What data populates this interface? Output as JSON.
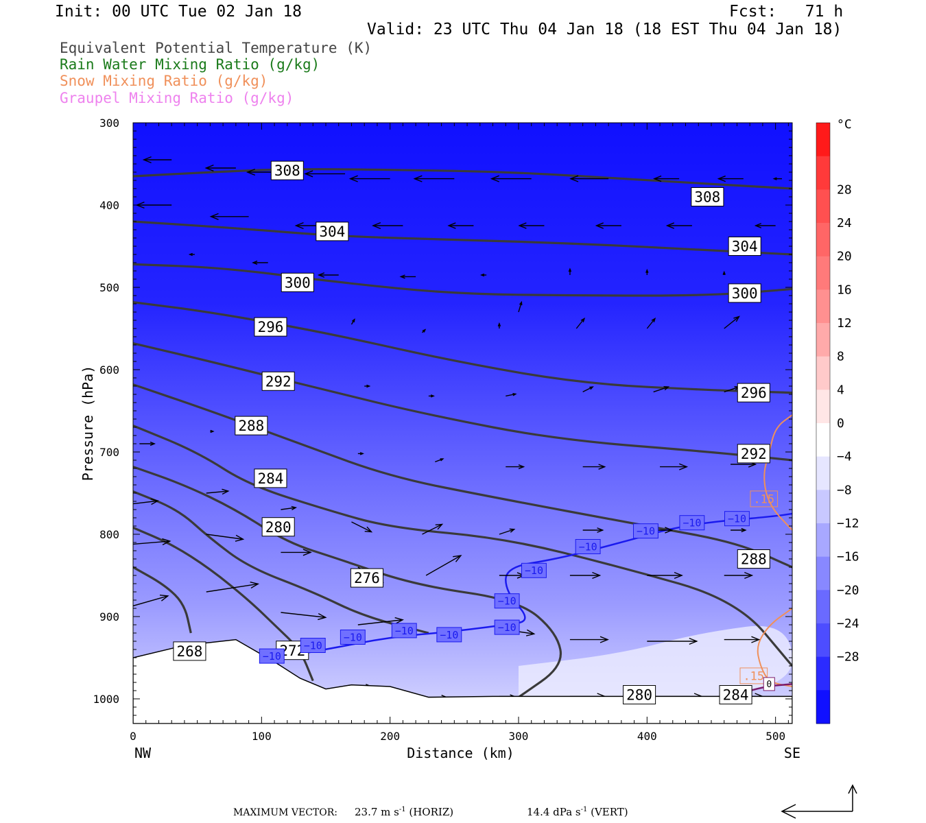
{
  "header": {
    "init": "Init: 00 UTC Tue 02 Jan 18",
    "fcst": "Fcst:   71 h",
    "valid": "Valid: 23 UTC Thu 04 Jan 18 (18 EST Thu 04 Jan 18)"
  },
  "fields": [
    {
      "label": "Equivalent Potential Temperature (K)",
      "color": "#444444"
    },
    {
      "label": "Rain Water Mixing Ratio (g/kg)",
      "color": "#1a7a1a"
    },
    {
      "label": "Snow Mixing Ratio (g/kg)",
      "color": "#f0905a"
    },
    {
      "label": "Graupel Mixing Ratio (g/kg)",
      "color": "#ee82ee"
    }
  ],
  "footer": {
    "max_vector_label": "MAXIMUM VECTOR:",
    "horiz_value": "23.7 m s",
    "horiz_exp": "-1",
    "horiz_unit": " (HORIZ)",
    "vert_value": "14.4 dPa s",
    "vert_exp": "-1",
    "vert_unit": " (VERT)"
  },
  "chart_data": {
    "type": "cross-section contour",
    "xlabel": "Distance (km)",
    "ylabel": "Pressure (hPa)",
    "xlim": [
      0,
      513
    ],
    "ylim": [
      1030,
      300
    ],
    "x_ticks": [
      0,
      100,
      200,
      300,
      400,
      500
    ],
    "y_ticks": [
      300,
      400,
      500,
      600,
      700,
      800,
      900,
      1000
    ],
    "x_end_labels": {
      "left": "NW",
      "right": "SE"
    },
    "colorbar": {
      "unit": "°C",
      "levels": [
        28,
        24,
        20,
        16,
        12,
        8,
        4,
        0,
        -4,
        -8,
        -12,
        -16,
        -20,
        -24,
        -28
      ],
      "colors": [
        "#ff1a1a",
        "#ff3a3a",
        "#ff5050",
        "#ff6666",
        "#ff7a7a",
        "#ff9090",
        "#ffaaaa",
        "#ffcaca",
        "#ffe6e6",
        "#ffffff",
        "#e6e6ff",
        "#c8c8ff",
        "#a8a8ff",
        "#8888ff",
        "#6a6aff",
        "#4d4dff",
        "#2b2bff",
        "#1010ff"
      ]
    },
    "theta_e_contours": [
      {
        "label": "308",
        "points": [
          [
            0,
            365
          ],
          [
            60,
            360
          ],
          [
            120,
            356
          ],
          [
            200,
            357
          ],
          [
            300,
            360
          ],
          [
            400,
            370
          ],
          [
            513,
            380
          ]
        ]
      },
      {
        "label": "304",
        "points": [
          [
            0,
            420
          ],
          [
            80,
            428
          ],
          [
            160,
            438
          ],
          [
            250,
            442
          ],
          [
            350,
            447
          ],
          [
            450,
            455
          ],
          [
            513,
            460
          ]
        ]
      },
      {
        "label": "300",
        "points": [
          [
            0,
            472
          ],
          [
            70,
            476
          ],
          [
            160,
            494
          ],
          [
            250,
            508
          ],
          [
            350,
            510
          ],
          [
            450,
            510
          ],
          [
            513,
            502
          ]
        ]
      },
      {
        "label": "296",
        "points": [
          [
            0,
            518
          ],
          [
            60,
            530
          ],
          [
            150,
            555
          ],
          [
            250,
            590
          ],
          [
            350,
            617
          ],
          [
            450,
            625
          ],
          [
            513,
            628
          ]
        ]
      },
      {
        "label": "292",
        "points": [
          [
            0,
            568
          ],
          [
            60,
            590
          ],
          [
            150,
            625
          ],
          [
            230,
            655
          ],
          [
            330,
            685
          ],
          [
            450,
            700
          ],
          [
            513,
            710
          ]
        ]
      },
      {
        "label": "288",
        "points": [
          [
            0,
            618
          ],
          [
            60,
            650
          ],
          [
            130,
            690
          ],
          [
            200,
            730
          ],
          [
            280,
            755
          ],
          [
            400,
            790
          ],
          [
            470,
            810
          ],
          [
            513,
            840
          ]
        ]
      },
      {
        "label": "284",
        "points": [
          [
            0,
            668
          ],
          [
            50,
            700
          ],
          [
            90,
            740
          ],
          [
            150,
            770
          ],
          [
            200,
            792
          ],
          [
            290,
            805
          ],
          [
            380,
            840
          ],
          [
            470,
            880
          ],
          [
            513,
            960
          ]
        ]
      },
      {
        "label": "280",
        "points": [
          [
            0,
            718
          ],
          [
            40,
            740
          ],
          [
            80,
            770
          ],
          [
            120,
            810
          ],
          [
            160,
            830
          ],
          [
            220,
            862
          ],
          [
            300,
            880
          ],
          [
            330,
            920
          ],
          [
            335,
            960
          ],
          [
            300,
            998
          ]
        ]
      },
      {
        "label": "276",
        "points": [
          [
            0,
            748
          ],
          [
            35,
            770
          ],
          [
            60,
            805
          ],
          [
            90,
            840
          ],
          [
            140,
            870
          ],
          [
            180,
            900
          ],
          [
            230,
            920
          ]
        ]
      },
      {
        "label": "272",
        "points": [
          [
            0,
            792
          ],
          [
            30,
            812
          ],
          [
            60,
            842
          ],
          [
            90,
            880
          ],
          [
            110,
            910
          ],
          [
            130,
            940
          ],
          [
            140,
            978
          ]
        ]
      },
      {
        "label": "268",
        "points": [
          [
            0,
            840
          ],
          [
            25,
            862
          ],
          [
            40,
            885
          ],
          [
            45,
            920
          ]
        ]
      }
    ],
    "theta_e_labels": [
      {
        "value": "308",
        "x": 120,
        "p": 358
      },
      {
        "value": "308",
        "x": 447,
        "p": 390
      },
      {
        "value": "304",
        "x": 155,
        "p": 432
      },
      {
        "value": "304",
        "x": 476,
        "p": 450
      },
      {
        "value": "300",
        "x": 128,
        "p": 494
      },
      {
        "value": "300",
        "x": 476,
        "p": 507
      },
      {
        "value": "296",
        "x": 107,
        "p": 548
      },
      {
        "value": "296",
        "x": 483,
        "p": 628
      },
      {
        "value": "292",
        "x": 113,
        "p": 614
      },
      {
        "value": "292",
        "x": 483,
        "p": 702
      },
      {
        "value": "288",
        "x": 92,
        "p": 668
      },
      {
        "value": "288",
        "x": 483,
        "p": 830
      },
      {
        "value": "284",
        "x": 107,
        "p": 732
      },
      {
        "value": "280",
        "x": 113,
        "p": 791
      },
      {
        "value": "276",
        "x": 182,
        "p": 853
      },
      {
        "value": "272",
        "x": 124,
        "p": 941
      },
      {
        "value": "268",
        "x": 44,
        "p": 942
      },
      {
        "value": "280",
        "x": 394,
        "p": 995
      },
      {
        "value": "284",
        "x": 469,
        "p": 995
      }
    ],
    "temp_minus10_isotherm": [
      [
        95,
        955
      ],
      [
        150,
        940
      ],
      [
        200,
        925
      ],
      [
        250,
        918
      ],
      [
        290,
        910
      ],
      [
        310,
        905
      ],
      [
        290,
        870
      ],
      [
        290,
        840
      ],
      [
        330,
        830
      ],
      [
        380,
        810
      ],
      [
        430,
        788
      ],
      [
        500,
        778
      ],
      [
        513,
        775
      ]
    ],
    "temp_labels": [
      {
        "value": "-10",
        "x": 108,
        "p": 948
      },
      {
        "value": "-10",
        "x": 140,
        "p": 935
      },
      {
        "value": "-10",
        "x": 171,
        "p": 925
      },
      {
        "value": "-10",
        "x": 211,
        "p": 917
      },
      {
        "value": "-10",
        "x": 246,
        "p": 922
      },
      {
        "value": "-10",
        "x": 291,
        "p": 913
      },
      {
        "value": "-10",
        "x": 291,
        "p": 881
      },
      {
        "value": "-10",
        "x": 312,
        "p": 844
      },
      {
        "value": "-10",
        "x": 354,
        "p": 815
      },
      {
        "value": "-10",
        "x": 399,
        "p": 796
      },
      {
        "value": "-10",
        "x": 435,
        "p": 786
      },
      {
        "value": "-10",
        "x": 470,
        "p": 781
      }
    ],
    "snow_contours": [
      {
        "label": ".15",
        "points": [
          [
            513,
            655
          ],
          [
            500,
            670
          ],
          [
            495,
            700
          ],
          [
            490,
            730
          ],
          [
            495,
            765
          ],
          [
            513,
            795
          ]
        ]
      },
      {
        "label": ".15",
        "points": [
          [
            513,
            890
          ],
          [
            495,
            910
          ],
          [
            485,
            935
          ],
          [
            488,
            960
          ],
          [
            495,
            980
          ],
          [
            513,
            985
          ]
        ]
      }
    ],
    "snow_labels": [
      {
        "value": ".15",
        "x": 491,
        "p": 757
      },
      {
        "value": ".15",
        "x": 483,
        "p": 972
      }
    ],
    "graupel_contours": [
      {
        "label": "0",
        "points": [
          [
            460,
            1000
          ],
          [
            490,
            985
          ],
          [
            513,
            982
          ]
        ]
      }
    ],
    "graupel_labels": [
      {
        "value": "0",
        "x": 495,
        "p": 982
      }
    ],
    "terrain": [
      [
        0,
        950
      ],
      [
        40,
        935
      ],
      [
        80,
        928
      ],
      [
        110,
        955
      ],
      [
        130,
        975
      ],
      [
        150,
        988
      ],
      [
        170,
        983
      ],
      [
        200,
        985
      ],
      [
        230,
        998
      ],
      [
        280,
        997
      ],
      [
        320,
        997
      ],
      [
        400,
        997
      ],
      [
        513,
        997
      ]
    ],
    "wind_vectors": [
      {
        "x": 30,
        "p": 345,
        "u": -28,
        "w": 0
      },
      {
        "x": 80,
        "p": 355,
        "u": -30,
        "w": 0
      },
      {
        "x": 120,
        "p": 360,
        "u": -40,
        "w": 0
      },
      {
        "x": 165,
        "p": 362,
        "u": -40,
        "w": 0
      },
      {
        "x": 200,
        "p": 368,
        "u": -40,
        "w": 0
      },
      {
        "x": 250,
        "p": 368,
        "u": -40,
        "w": 0
      },
      {
        "x": 310,
        "p": 368,
        "u": -40,
        "w": 0
      },
      {
        "x": 370,
        "p": 368,
        "u": -38,
        "w": 0
      },
      {
        "x": 425,
        "p": 368,
        "u": -25,
        "w": 0
      },
      {
        "x": 475,
        "p": 368,
        "u": -25,
        "w": 0
      },
      {
        "x": 505,
        "p": 368,
        "u": -8,
        "w": 0
      },
      {
        "x": 30,
        "p": 400,
        "u": -35,
        "w": 0
      },
      {
        "x": 90,
        "p": 414,
        "u": -38,
        "w": 0
      },
      {
        "x": 150,
        "p": 425,
        "u": -30,
        "w": 0
      },
      {
        "x": 210,
        "p": 425,
        "u": -30,
        "w": 0
      },
      {
        "x": 265,
        "p": 425,
        "u": -25,
        "w": 0
      },
      {
        "x": 320,
        "p": 425,
        "u": -25,
        "w": 0
      },
      {
        "x": 380,
        "p": 425,
        "u": -25,
        "w": 0
      },
      {
        "x": 435,
        "p": 425,
        "u": -25,
        "w": 0
      },
      {
        "x": 500,
        "p": 425,
        "u": -20,
        "w": 0
      },
      {
        "x": 48,
        "p": 460,
        "u": -5,
        "w": 0
      },
      {
        "x": 105,
        "p": 470,
        "u": -15,
        "w": 0
      },
      {
        "x": 160,
        "p": 485,
        "u": -20,
        "w": 0
      },
      {
        "x": 220,
        "p": 487,
        "u": -15,
        "w": 0
      },
      {
        "x": 275,
        "p": 485,
        "u": -5,
        "w": 0
      },
      {
        "x": 340,
        "p": 485,
        "u": 0,
        "w": 6
      },
      {
        "x": 400,
        "p": 485,
        "u": 0,
        "w": 5
      },
      {
        "x": 460,
        "p": 485,
        "u": 0,
        "w": 3
      },
      {
        "x": 300,
        "p": 530,
        "u": 3,
        "w": 10
      },
      {
        "x": 170,
        "p": 545,
        "u": 3,
        "w": 5
      },
      {
        "x": 225,
        "p": 555,
        "u": 3,
        "w": 3
      },
      {
        "x": 285,
        "p": 550,
        "u": 0,
        "w": 5
      },
      {
        "x": 345,
        "p": 550,
        "u": 8,
        "w": 10
      },
      {
        "x": 400,
        "p": 550,
        "u": 8,
        "w": 10
      },
      {
        "x": 460,
        "p": 550,
        "u": 15,
        "w": 12
      },
      {
        "x": 180,
        "p": 620,
        "u": 5,
        "w": 0
      },
      {
        "x": 230,
        "p": 632,
        "u": 5,
        "w": 0
      },
      {
        "x": 290,
        "p": 632,
        "u": 10,
        "w": 2
      },
      {
        "x": 350,
        "p": 627,
        "u": 10,
        "w": 5
      },
      {
        "x": 405,
        "p": 627,
        "u": 15,
        "w": 5
      },
      {
        "x": 460,
        "p": 627,
        "u": 15,
        "w": 5
      },
      {
        "x": 60,
        "p": 675,
        "u": 3,
        "w": 0
      },
      {
        "x": 5,
        "p": 690,
        "u": 15,
        "w": 0
      },
      {
        "x": 175,
        "p": 702,
        "u": 5,
        "w": 0
      },
      {
        "x": 235,
        "p": 712,
        "u": 8,
        "w": 3
      },
      {
        "x": 290,
        "p": 718,
        "u": 18,
        "w": 0
      },
      {
        "x": 350,
        "p": 718,
        "u": 22,
        "w": 0
      },
      {
        "x": 410,
        "p": 718,
        "u": 27,
        "w": 0
      },
      {
        "x": 465,
        "p": 715,
        "u": 25,
        "w": 0
      },
      {
        "x": 0,
        "p": 763,
        "u": 25,
        "w": 3
      },
      {
        "x": 57,
        "p": 750,
        "u": 22,
        "w": 2
      },
      {
        "x": 115,
        "p": 770,
        "u": 15,
        "w": 2
      },
      {
        "x": 170,
        "p": 785,
        "u": 20,
        "w": -10
      },
      {
        "x": 225,
        "p": 800,
        "u": 20,
        "w": 10
      },
      {
        "x": 285,
        "p": 800,
        "u": 15,
        "w": 5
      },
      {
        "x": 350,
        "p": 795,
        "u": 20,
        "w": 0
      },
      {
        "x": 400,
        "p": 795,
        "u": 25,
        "w": 0
      },
      {
        "x": 465,
        "p": 795,
        "u": 15,
        "w": 0
      },
      {
        "x": 0,
        "p": 812,
        "u": 37,
        "w": 3
      },
      {
        "x": 57,
        "p": 800,
        "u": 37,
        "w": -5
      },
      {
        "x": 115,
        "p": 822,
        "u": 30,
        "w": 0
      },
      {
        "x": 175,
        "p": 840,
        "u": 25,
        "w": -15
      },
      {
        "x": 228,
        "p": 850,
        "u": 35,
        "w": 20
      },
      {
        "x": 285,
        "p": 850,
        "u": 25,
        "w": 0
      },
      {
        "x": 340,
        "p": 850,
        "u": 30,
        "w": 0
      },
      {
        "x": 400,
        "p": 850,
        "u": 35,
        "w": 0
      },
      {
        "x": 460,
        "p": 850,
        "u": 28,
        "w": 0
      },
      {
        "x": 0,
        "p": 887,
        "u": 35,
        "w": 10
      },
      {
        "x": 57,
        "p": 870,
        "u": 52,
        "w": 8
      },
      {
        "x": 115,
        "p": 895,
        "u": 45,
        "w": -5
      },
      {
        "x": 175,
        "p": 910,
        "u": 45,
        "w": 5
      },
      {
        "x": 285,
        "p": 915,
        "u": 35,
        "w": -5
      },
      {
        "x": 340,
        "p": 928,
        "u": 38,
        "w": 0
      },
      {
        "x": 400,
        "p": 930,
        "u": 50,
        "w": 0
      },
      {
        "x": 460,
        "p": 928,
        "u": 35,
        "w": 0
      },
      {
        "x": 0,
        "p": 958,
        "u": 25,
        "w": 5
      },
      {
        "x": 170,
        "p": 985,
        "u": 20,
        "w": 0
      },
      {
        "x": 230,
        "p": 998,
        "u": 18,
        "w": 0
      },
      {
        "x": 285,
        "p": 997,
        "u": 15,
        "w": 0
      },
      {
        "x": 340,
        "p": 997,
        "u": 35,
        "w": 0
      },
      {
        "x": 400,
        "p": 997,
        "u": 55,
        "w": 0
      },
      {
        "x": 455,
        "p": 997,
        "u": 45,
        "w": 0
      }
    ]
  }
}
